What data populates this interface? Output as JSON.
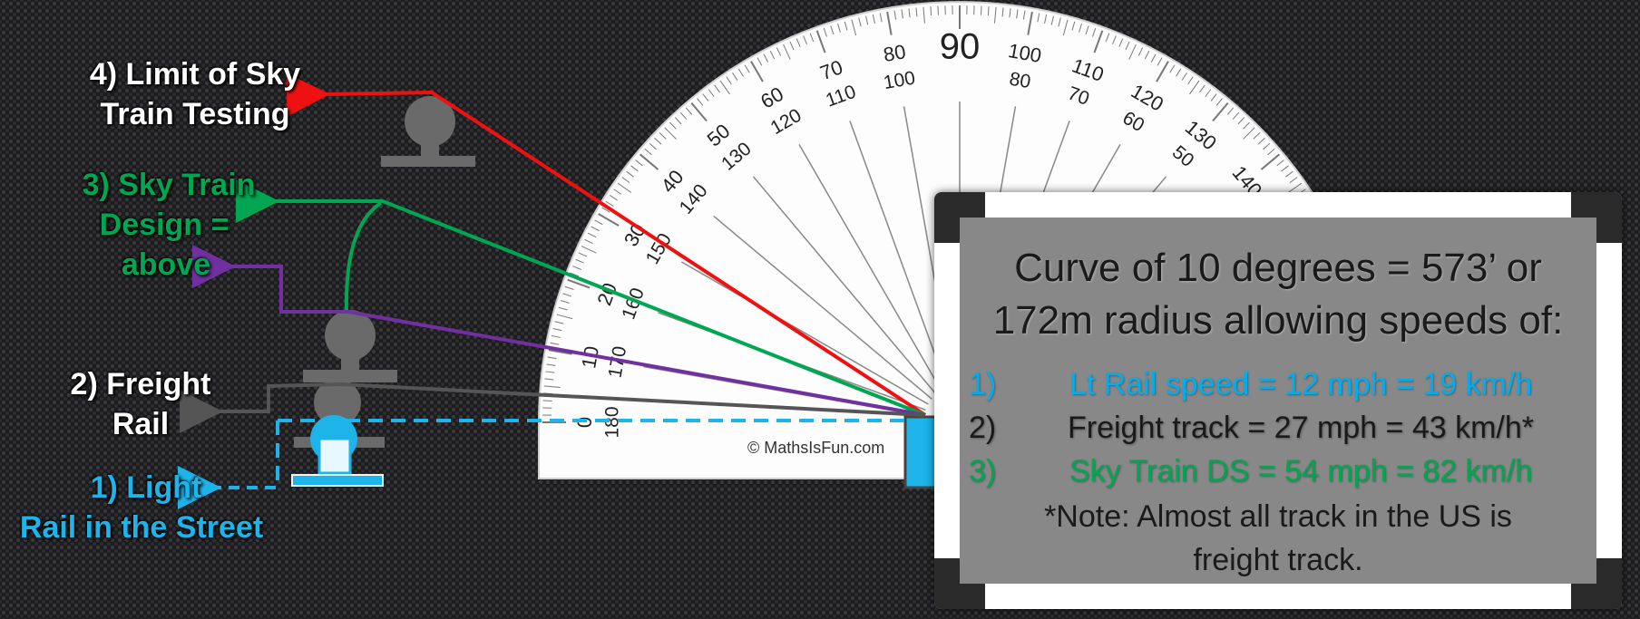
{
  "labels": {
    "limit": {
      "line1": "4) Limit of Sky",
      "line2": "Train  Testing"
    },
    "sky_train": {
      "line1": "3) Sky Train",
      "line2": "Design =",
      "line3": "above"
    },
    "freight": {
      "line1": "2) Freight",
      "line2": "Rail"
    },
    "light_rail": {
      "line1": "1) Light",
      "line2": "Rail in the Street"
    }
  },
  "protractor": {
    "outer_numbers": [
      "0",
      "10",
      "20",
      "30",
      "40",
      "50",
      "60",
      "70",
      "80",
      "90",
      "100",
      "110",
      "120",
      "130",
      "140"
    ],
    "inner_numbers": [
      "180",
      "170",
      "160",
      "150",
      "140",
      "130",
      "120",
      "110",
      "100",
      "80",
      "70",
      "60",
      "50"
    ],
    "credit": "© MathsIsFun.com"
  },
  "callout": {
    "headline_line1": "Curve of 10 degrees = 573’ or",
    "headline_line2": "172m radius allowing speeds of:",
    "rows": [
      {
        "num": "1)",
        "text": "Lt Rail speed = 12 mph  = 19 km/h",
        "color": "#00aeef"
      },
      {
        "num": "2)",
        "text": "Freight track  = 27 mph =  43 km/h*",
        "color": "#1a1a1a"
      },
      {
        "num": "3)",
        "text": "Sky Train DS  = 54 mph  = 82 km/h",
        "color": "#00a651"
      }
    ],
    "note_line1": "*Note:  Almost all track in the US is",
    "note_line2": "freight track."
  },
  "colors": {
    "red": "#ee1111",
    "green": "#00a651",
    "purple": "#7030a0",
    "gray": "#555555",
    "blue": "#1eb4ea",
    "white": "#ffffff"
  }
}
